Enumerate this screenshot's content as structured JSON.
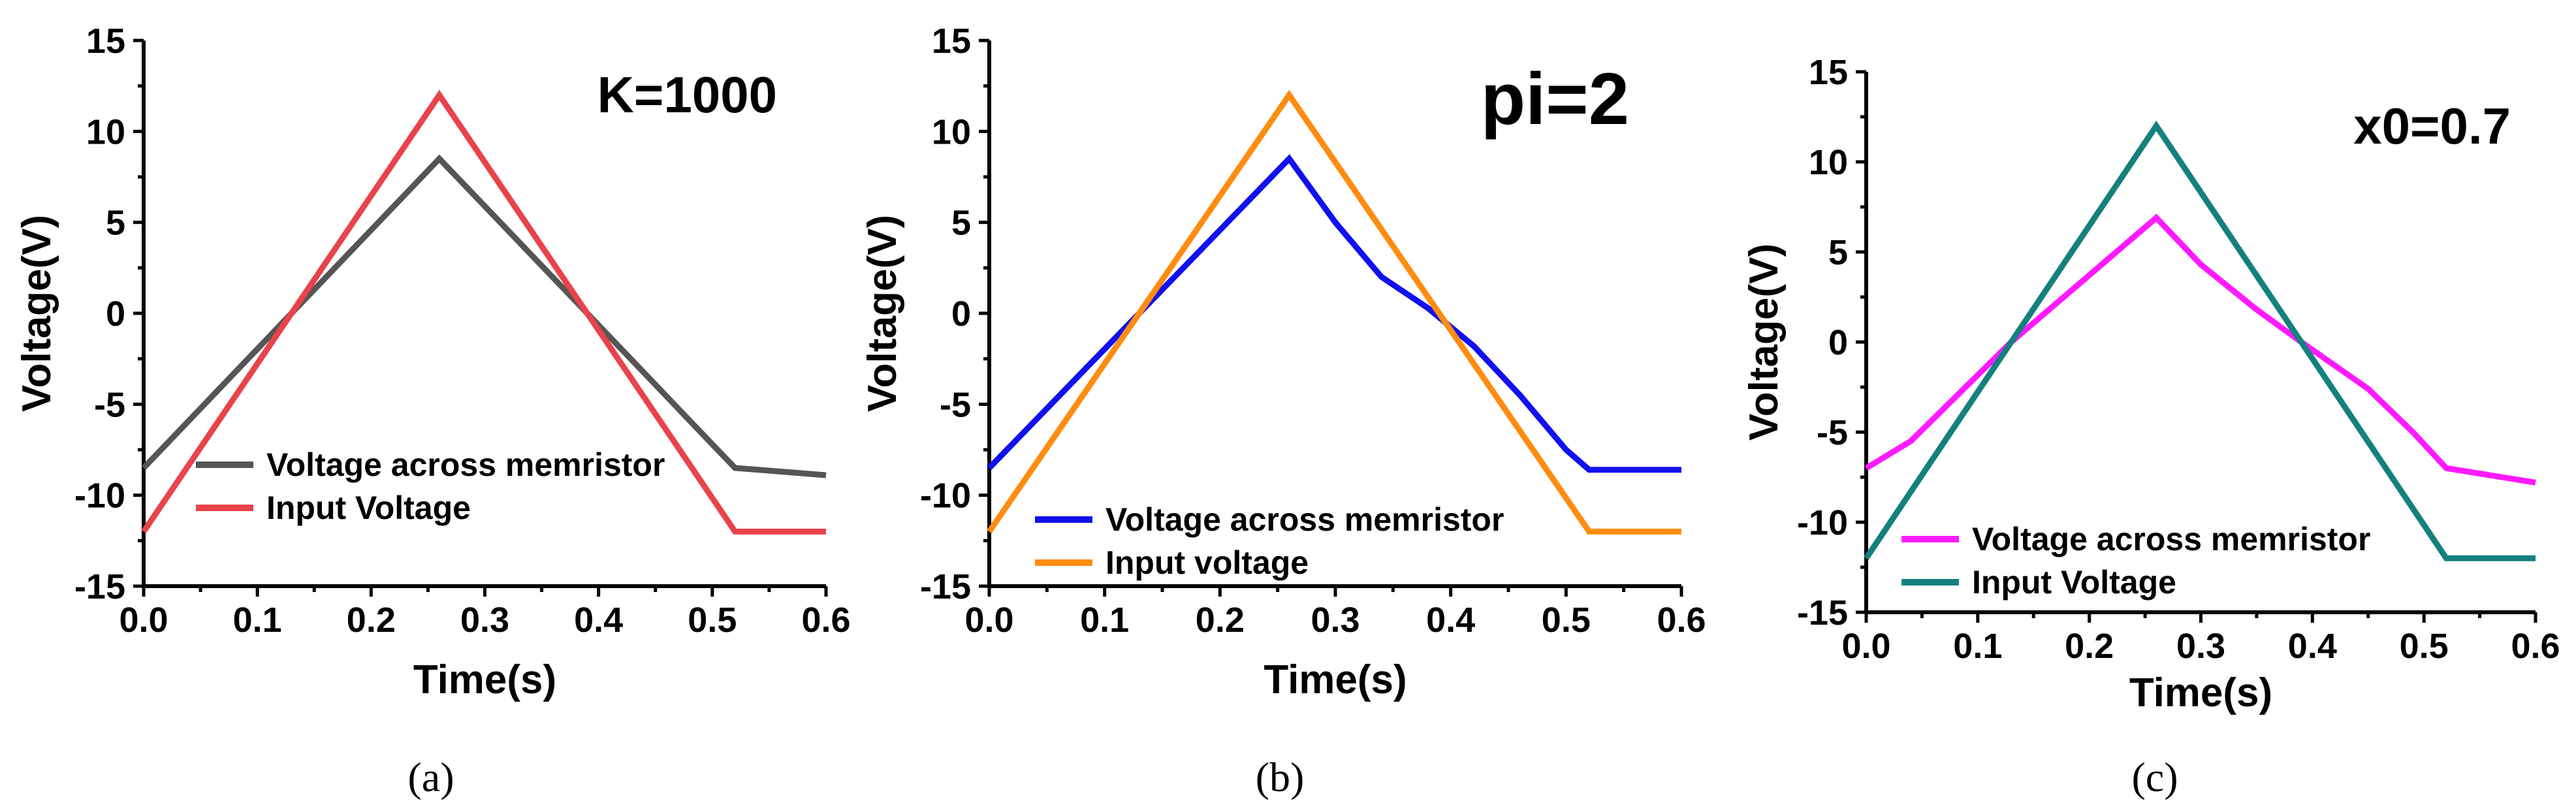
{
  "chart_data": [
    {
      "type": "line",
      "caption": "(a)",
      "annotation": "K=1000",
      "xlabel": "Time(s)",
      "ylabel": "Voltage(V)",
      "xlim": [
        0,
        0.6
      ],
      "ylim": [
        -15,
        15
      ],
      "xticks": [
        "0.0",
        "0.1",
        "0.2",
        "0.3",
        "0.4",
        "0.5",
        "0.6"
      ],
      "yticks": [
        "15",
        "10",
        "5",
        "0",
        "-5",
        "-10",
        "-15"
      ],
      "legend_position": "bottom-left",
      "series": [
        {
          "name": "Voltage across memristor",
          "color": "#555555",
          "x": [
            0,
            0.13,
            0.26,
            0.39,
            0.5,
            0.52,
            0.6
          ],
          "y": [
            -8.5,
            0,
            8.5,
            0,
            -7.2,
            -8.5,
            -8.9
          ]
        },
        {
          "name": "Input Voltage",
          "color": "#e8434b",
          "x": [
            0,
            0.26,
            0.52,
            0.6
          ],
          "y": [
            -12,
            12,
            -12,
            -12
          ]
        }
      ]
    },
    {
      "type": "line",
      "caption": "(b)",
      "annotation": "pi=2",
      "xlabel": "Time(s)",
      "ylabel": "Voltage(V)",
      "xlim": [
        0,
        0.6
      ],
      "ylim": [
        -15,
        15
      ],
      "xticks": [
        "0.0",
        "0.1",
        "0.2",
        "0.3",
        "0.4",
        "0.5",
        "0.6"
      ],
      "yticks": [
        "15",
        "10",
        "5",
        "0",
        "-5",
        "-10",
        "-15"
      ],
      "legend_position": "bottom-left",
      "series": [
        {
          "name": "Voltage across memristor",
          "color": "#1010f0",
          "x": [
            0,
            0.13,
            0.26,
            0.3,
            0.34,
            0.38,
            0.42,
            0.46,
            0.5,
            0.52,
            0.6
          ],
          "y": [
            -8.5,
            0,
            8.5,
            5.0,
            2.0,
            0.3,
            -1.8,
            -4.5,
            -7.5,
            -8.6,
            -8.6
          ]
        },
        {
          "name": "Input voltage",
          "color": "#ff8c10",
          "x": [
            0,
            0.26,
            0.52,
            0.6
          ],
          "y": [
            -12,
            12,
            -12,
            -12
          ]
        }
      ]
    },
    {
      "type": "line",
      "caption": "(c)",
      "annotation": "x0=0.7",
      "xlabel": "Time(s)",
      "ylabel": "Voltage(V)",
      "xlim": [
        0,
        0.6
      ],
      "ylim": [
        -15,
        15
      ],
      "xticks": [
        "0.0",
        "0.1",
        "0.2",
        "0.3",
        "0.4",
        "0.5",
        "0.6"
      ],
      "yticks": [
        "15",
        "10",
        "5",
        "0",
        "-5",
        "-10",
        "-15"
      ],
      "legend_position": "bottom-left",
      "series": [
        {
          "name": "Voltage across memristor",
          "color": "#ff1aff",
          "x": [
            0,
            0.04,
            0.13,
            0.26,
            0.3,
            0.35,
            0.39,
            0.45,
            0.49,
            0.52,
            0.6
          ],
          "y": [
            -7,
            -5.5,
            0,
            6.9,
            4.3,
            1.8,
            0,
            -2.6,
            -5,
            -7,
            -7.8
          ]
        },
        {
          "name": "Input Voltage",
          "color": "#14807e",
          "x": [
            0,
            0.26,
            0.52,
            0.6
          ],
          "y": [
            -12,
            12,
            -12,
            -12
          ]
        }
      ]
    }
  ]
}
